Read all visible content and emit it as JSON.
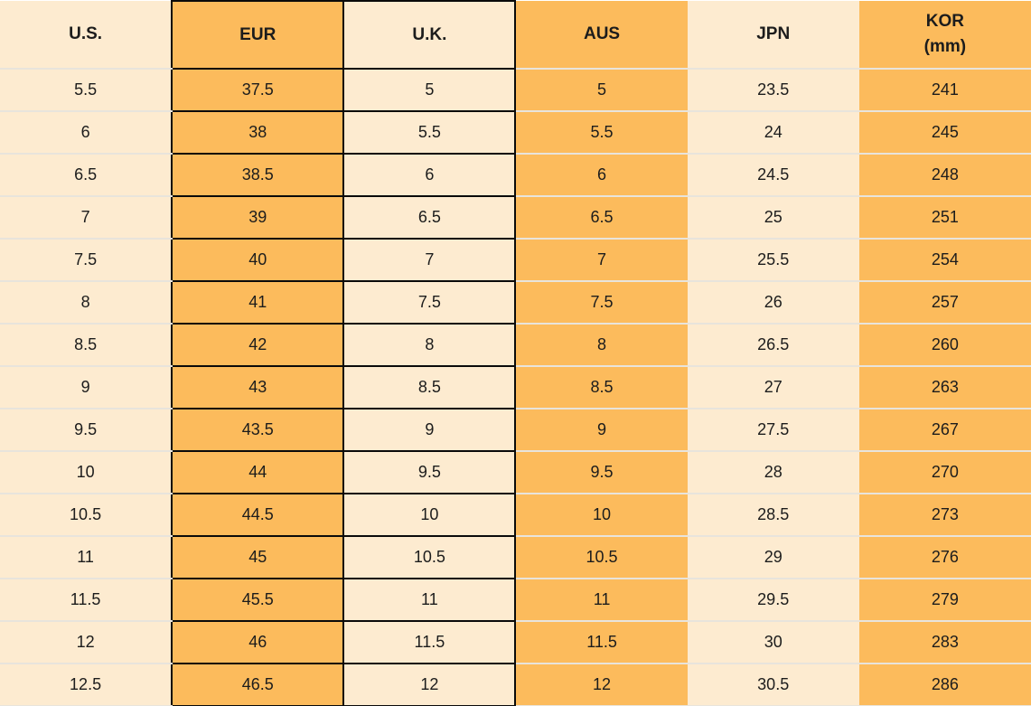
{
  "colors": {
    "header_blue": "#4188c6",
    "column_orange": "#fcbb5c",
    "column_cream": "#fdebd0",
    "row_separator": "#e8e4dc",
    "box_border": "#0a0a0a",
    "text": "#1c1c1c"
  },
  "table": {
    "columns": [
      {
        "key": "us",
        "label": "U.S.",
        "sublabel": "",
        "style": "cream",
        "boxed": false
      },
      {
        "key": "eur",
        "label": "EUR",
        "sublabel": "",
        "style": "orange",
        "boxed": true
      },
      {
        "key": "uk",
        "label": "U.K.",
        "sublabel": "",
        "style": "cream",
        "boxed": true
      },
      {
        "key": "aus",
        "label": "AUS",
        "sublabel": "",
        "style": "orange",
        "boxed": false
      },
      {
        "key": "jpn",
        "label": "JPN",
        "sublabel": "",
        "style": "cream",
        "boxed": false
      },
      {
        "key": "kor",
        "label": "KOR",
        "sublabel": "(mm)",
        "style": "orange",
        "boxed": false
      }
    ],
    "rows": [
      [
        "5.5",
        "37.5",
        "5",
        "5",
        "23.5",
        "241"
      ],
      [
        "6",
        "38",
        "5.5",
        "5.5",
        "24",
        "245"
      ],
      [
        "6.5",
        "38.5",
        "6",
        "6",
        "24.5",
        "248"
      ],
      [
        "7",
        "39",
        "6.5",
        "6.5",
        "25",
        "251"
      ],
      [
        "7.5",
        "40",
        "7",
        "7",
        "25.5",
        "254"
      ],
      [
        "8",
        "41",
        "7.5",
        "7.5",
        "26",
        "257"
      ],
      [
        "8.5",
        "42",
        "8",
        "8",
        "26.5",
        "260"
      ],
      [
        "9",
        "43",
        "8.5",
        "8.5",
        "27",
        "263"
      ],
      [
        "9.5",
        "43.5",
        "9",
        "9",
        "27.5",
        "267"
      ],
      [
        "10",
        "44",
        "9.5",
        "9.5",
        "28",
        "270"
      ],
      [
        "10.5",
        "44.5",
        "10",
        "10",
        "28.5",
        "273"
      ],
      [
        "11",
        "45",
        "10.5",
        "10.5",
        "29",
        "276"
      ],
      [
        "11.5",
        "45.5",
        "11",
        "11",
        "29.5",
        "279"
      ],
      [
        "12",
        "46",
        "11.5",
        "11.5",
        "30",
        "283"
      ],
      [
        "12.5",
        "46.5",
        "12",
        "12",
        "30.5",
        "286"
      ]
    ]
  }
}
